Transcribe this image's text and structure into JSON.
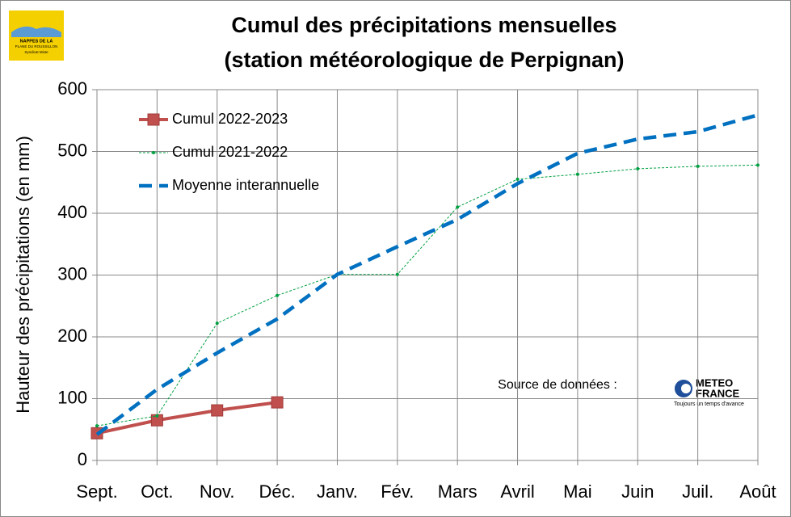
{
  "chart_data": {
    "type": "line",
    "title": "Cumul des précipitations mensuelles",
    "subtitle": "(station météorologique de Perpignan)",
    "y_label": "Hauteur des précipitations (en mm)",
    "categories": [
      "Sept.",
      "Oct.",
      "Nov.",
      "Déc.",
      "Janv.",
      "Fév.",
      "Mars",
      "Avril",
      "Mai",
      "Juin",
      "Juil.",
      "Août"
    ],
    "series": [
      {
        "name": "Cumul 2022-2023",
        "color": "#c0504d",
        "values": [
          44,
          65,
          81,
          94,
          null,
          null,
          null,
          null,
          null,
          null,
          null,
          null
        ]
      },
      {
        "name": "Cumul 2021-2022",
        "color": "#00a040",
        "values": [
          56,
          72,
          222,
          267,
          301,
          301,
          410,
          455,
          463,
          472,
          476,
          478
        ]
      },
      {
        "name": "Moyenne interannuelle",
        "color": "#0070c0",
        "values": [
          42,
          115,
          174,
          229,
          301,
          346,
          390,
          448,
          497,
          520,
          532,
          559
        ]
      }
    ],
    "ylim": [
      0,
      600
    ],
    "yticks": [
      0,
      100,
      200,
      300,
      400,
      500,
      600
    ],
    "grid": true,
    "legend": "upper left",
    "source_label": "Source de données :",
    "logo_left": [
      "NAPPES DE LA",
      "PLANE DU ROUSSILLON",
      "Syndicat Mixte"
    ],
    "logo_right": [
      "METEO",
      "FRANCE",
      "Toujours un temps d'avance"
    ]
  }
}
